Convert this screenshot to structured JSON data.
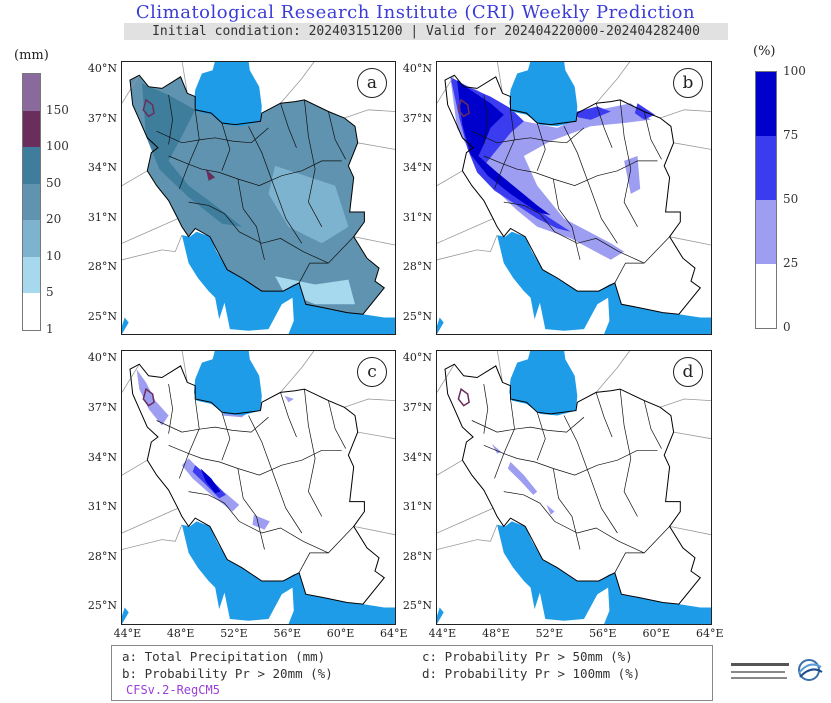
{
  "title": "Climatological Research Institute (CRI) Weekly Prediction",
  "subtitle": "Initial condiation: 202403151200 | Valid for 202404220000-202404282400",
  "precip_legend": {
    "unit": "(mm)",
    "levels": [
      "150",
      "100",
      "50",
      "20",
      "10",
      "5",
      "1"
    ],
    "colors": [
      "#8a6a9c",
      "#6a2d5c",
      "#3f7d9c",
      "#5f93b0",
      "#7eb3cf",
      "#a6d8ee",
      "#ffffff"
    ]
  },
  "prob_legend": {
    "unit": "(%)",
    "levels": [
      "100",
      "75",
      "50",
      "25",
      "0"
    ],
    "colors": [
      "#0000cc",
      "#3b3bf0",
      "#9d9df2",
      "#ffffff"
    ]
  },
  "panels": [
    {
      "label": "a"
    },
    {
      "label": "b"
    },
    {
      "label": "c"
    },
    {
      "label": "d"
    }
  ],
  "lat_ticks": [
    "40°N",
    "37°N",
    "34°N",
    "31°N",
    "28°N",
    "25°N"
  ],
  "lon_ticks": [
    "44°E",
    "48°E",
    "52°E",
    "56°E",
    "60°E",
    "64°E"
  ],
  "caption": {
    "a": "a: Total Precipitation (mm)",
    "b": "b: Probability Pr > 20mm (%)",
    "c": "c: Probability Pr > 50mm (%)",
    "d": "d: Probability Pr > 100mm (%)",
    "model": "CFSv.2-RegCM5"
  },
  "logo_icon": "institute-logo-icon"
}
